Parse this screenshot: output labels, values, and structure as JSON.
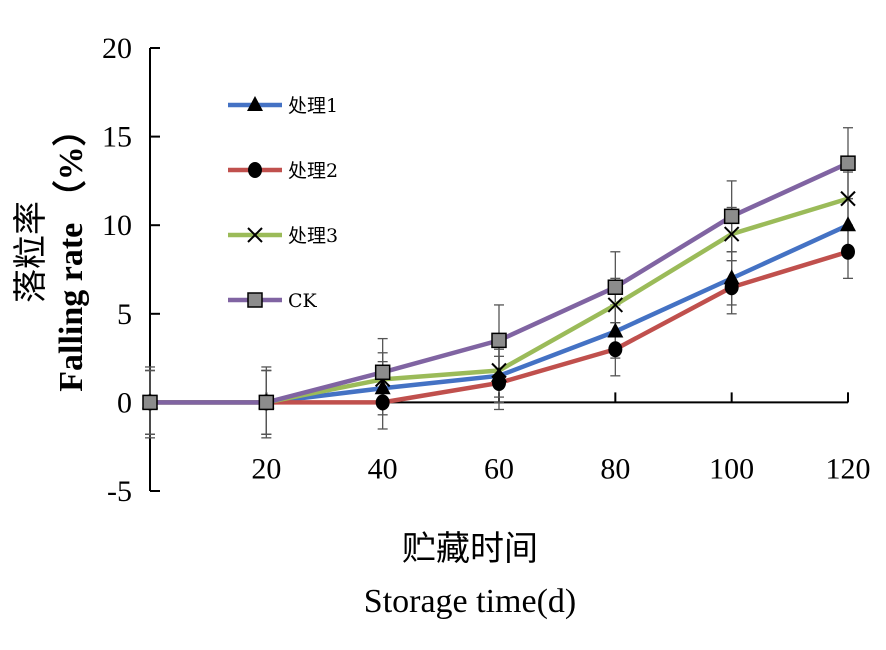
{
  "chart_data": {
    "type": "line",
    "x": [
      0,
      20,
      40,
      60,
      80,
      100,
      120
    ],
    "x_tick_labels": [
      "20",
      "40",
      "60",
      "80",
      "100",
      "120"
    ],
    "y_tick_labels": [
      "20",
      "15",
      "10",
      "5",
      "0",
      "-5"
    ],
    "xlim": [
      0,
      120
    ],
    "ylim": [
      -5,
      20
    ],
    "xlabel_cn": "贮藏时间",
    "xlabel_en": "Storage time(d)",
    "ylabel_cn": "落粒率",
    "ylabel_en": "Falling rate （%）",
    "grid": false,
    "legend_position": "top-left",
    "series": [
      {
        "name": "处理1",
        "color": "#4472C4",
        "marker": "triangle",
        "values": [
          0,
          0,
          0.8,
          1.5,
          4.0,
          7.0,
          10.0
        ],
        "error": [
          1.8,
          1.8,
          1.5,
          1.5,
          1.5,
          1.5,
          1.5
        ]
      },
      {
        "name": "处理2",
        "color": "#C0504D",
        "marker": "circle",
        "values": [
          0,
          0,
          0,
          1.1,
          3.0,
          6.5,
          8.5
        ],
        "error": [
          1.8,
          1.8,
          1.5,
          1.5,
          1.5,
          1.5,
          1.5
        ]
      },
      {
        "name": "处理3",
        "color": "#9BBB59",
        "marker": "x",
        "values": [
          0,
          0,
          1.3,
          1.8,
          5.5,
          9.5,
          11.5
        ],
        "error": [
          1.8,
          1.8,
          1.5,
          1.5,
          1.5,
          1.5,
          1.5
        ]
      },
      {
        "name": "CK",
        "color": "#8064A2",
        "marker": "square",
        "values": [
          0,
          0,
          1.7,
          3.5,
          6.5,
          10.5,
          13.5
        ],
        "error": [
          2.0,
          2.0,
          1.9,
          2.0,
          2.0,
          2.0,
          2.0
        ]
      }
    ]
  }
}
